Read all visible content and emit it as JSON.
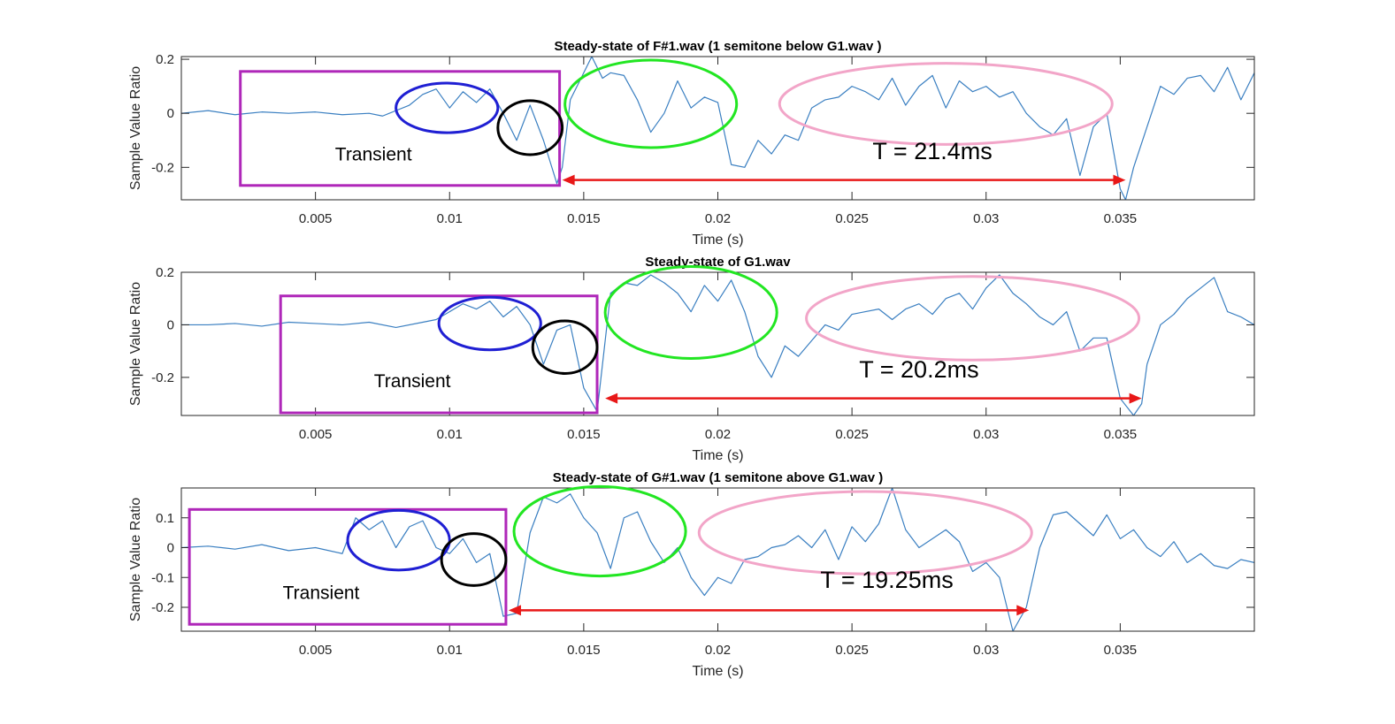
{
  "chart_data": [
    {
      "type": "line",
      "title": "Steady-state of F#1.wav (1 semitone below G1.wav )",
      "xlabel": "Time (s)",
      "ylabel": "Sample Value Ratio",
      "xlim": [
        0,
        0.04
      ],
      "ylim": [
        -0.32,
        0.21
      ],
      "xticks": [
        0.005,
        0.01,
        0.015,
        0.02,
        0.025,
        0.03,
        0.035
      ],
      "xtick_labels": [
        "0.005",
        "0.01",
        "0.015",
        "0.02",
        "0.025",
        "0.03",
        "0.035"
      ],
      "yticks": [
        0.2,
        0,
        -0.2
      ],
      "ytick_labels": [
        "0.2",
        "0",
        "-0.2"
      ],
      "grid": false,
      "line_color": "#3A7FC1",
      "series": [
        {
          "x": [
            0,
            0.001,
            0.002,
            0.003,
            0.004,
            0.005,
            0.006,
            0.007,
            0.0075,
            0.008,
            0.0085,
            0.009,
            0.0095,
            0.01,
            0.0105,
            0.011,
            0.0115,
            0.012,
            0.0125,
            0.013,
            0.0135,
            0.014,
            0.0142,
            0.0145,
            0.015,
            0.0153,
            0.0157,
            0.016,
            0.0165,
            0.017,
            0.0175,
            0.018,
            0.0185,
            0.019,
            0.0195,
            0.02,
            0.0205,
            0.021,
            0.0215,
            0.022,
            0.0225,
            0.023,
            0.0235,
            0.024,
            0.0245,
            0.025,
            0.0255,
            0.026,
            0.0265,
            0.027,
            0.0275,
            0.028,
            0.0285,
            0.029,
            0.0295,
            0.03,
            0.0305,
            0.031,
            0.0315,
            0.032,
            0.0325,
            0.033,
            0.0335,
            0.034,
            0.0345,
            0.035,
            0.0352,
            0.0355,
            0.036,
            0.0365,
            0.037,
            0.0375,
            0.038,
            0.0385,
            0.039,
            0.0395,
            0.04
          ],
          "y": [
            0,
            0.01,
            -0.005,
            0.005,
            0,
            0.005,
            -0.005,
            0,
            -0.01,
            0.01,
            0.03,
            0.07,
            0.09,
            0.02,
            0.08,
            0.04,
            0.09,
            0.0,
            -0.1,
            0.03,
            -0.1,
            -0.26,
            -0.2,
            0.05,
            0.15,
            0.21,
            0.13,
            0.15,
            0.14,
            0.05,
            -0.07,
            0.0,
            0.12,
            0.02,
            0.06,
            0.04,
            -0.19,
            -0.2,
            -0.1,
            -0.15,
            -0.08,
            -0.1,
            0.02,
            0.05,
            0.06,
            0.1,
            0.08,
            0.05,
            0.13,
            0.03,
            0.1,
            0.14,
            0.02,
            0.12,
            0.08,
            0.1,
            0.06,
            0.08,
            0.0,
            -0.05,
            -0.08,
            -0.02,
            -0.23,
            -0.05,
            0.0,
            -0.28,
            -0.32,
            -0.2,
            -0.05,
            0.1,
            0.07,
            0.13,
            0.14,
            0.08,
            0.17,
            0.05,
            0.15
          ]
        }
      ],
      "annotations": {
        "transient_label": "Transient",
        "period_label": "T = 21.4ms",
        "transient_box": {
          "x0": 0.0022,
          "x1": 0.0141,
          "y0": -0.267,
          "y1": 0.155
        },
        "blue_ellipse": {
          "cx": 0.0099,
          "cy": 0.02,
          "rx": 0.0019,
          "ry": 0.0917
        },
        "black_ellipse": {
          "cx": 0.013,
          "cy": -0.053,
          "rx": 0.0012,
          "ry": 0.1
        },
        "green_ellipse": {
          "cx": 0.0175,
          "cy": 0.035,
          "rx": 0.0032,
          "ry": 0.162
        },
        "pink_ellipse": {
          "cx": 0.0285,
          "cy": 0.035,
          "rx": 0.0062,
          "ry": 0.15
        },
        "arrow": {
          "x0": 0.0142,
          "x1": 0.0352,
          "y": -0.247
        },
        "period_label_pos": {
          "x": 0.028,
          "y": -0.17
        }
      }
    },
    {
      "type": "line",
      "title": "Steady-state of G1.wav",
      "xlabel": "Time (s)",
      "ylabel": "Sample Value Ratio",
      "xlim": [
        0,
        0.04
      ],
      "ylim": [
        -0.345,
        0.2
      ],
      "xticks": [
        0.005,
        0.01,
        0.015,
        0.02,
        0.025,
        0.03,
        0.035
      ],
      "xtick_labels": [
        "0.005",
        "0.01",
        "0.015",
        "0.02",
        "0.025",
        "0.03",
        "0.035"
      ],
      "yticks": [
        0.2,
        0,
        -0.2
      ],
      "ytick_labels": [
        "0.2",
        "0",
        "-0.2"
      ],
      "grid": false,
      "line_color": "#3A7FC1",
      "series": [
        {
          "x": [
            0,
            0.001,
            0.002,
            0.003,
            0.004,
            0.005,
            0.006,
            0.007,
            0.008,
            0.009,
            0.0095,
            0.01,
            0.0105,
            0.011,
            0.0115,
            0.012,
            0.0125,
            0.013,
            0.0135,
            0.014,
            0.0145,
            0.015,
            0.0155,
            0.016,
            0.0165,
            0.017,
            0.0175,
            0.018,
            0.0185,
            0.019,
            0.0195,
            0.02,
            0.0205,
            0.021,
            0.0215,
            0.022,
            0.0225,
            0.023,
            0.0235,
            0.024,
            0.0245,
            0.025,
            0.0255,
            0.026,
            0.0265,
            0.027,
            0.0275,
            0.028,
            0.0285,
            0.029,
            0.0295,
            0.03,
            0.0305,
            0.031,
            0.0315,
            0.032,
            0.0325,
            0.033,
            0.0335,
            0.034,
            0.0345,
            0.035,
            0.0355,
            0.0358,
            0.036,
            0.0365,
            0.037,
            0.0375,
            0.038,
            0.0385,
            0.039,
            0.0395,
            0.04
          ],
          "y": [
            0,
            0,
            0.005,
            -0.005,
            0.01,
            0.005,
            0,
            0.01,
            -0.01,
            0.01,
            0.02,
            0.05,
            0.08,
            0.06,
            0.09,
            0.03,
            0.07,
            0.0,
            -0.15,
            -0.02,
            0.0,
            -0.24,
            -0.33,
            0.12,
            0.16,
            0.15,
            0.19,
            0.16,
            0.12,
            0.05,
            0.15,
            0.09,
            0.17,
            0.05,
            -0.12,
            -0.2,
            -0.08,
            -0.12,
            -0.06,
            0.0,
            -0.02,
            0.04,
            0.05,
            0.06,
            0.02,
            0.06,
            0.08,
            0.04,
            0.1,
            0.12,
            0.06,
            0.14,
            0.19,
            0.12,
            0.08,
            0.03,
            0.0,
            0.05,
            -0.1,
            -0.05,
            -0.05,
            -0.28,
            -0.345,
            -0.3,
            -0.15,
            0.0,
            0.04,
            0.1,
            0.14,
            0.18,
            0.05,
            0.03,
            0.0
          ]
        }
      ],
      "annotations": {
        "transient_label": "Transient",
        "period_label": "T = 20.2ms",
        "transient_box": {
          "x0": 0.0037,
          "x1": 0.0155,
          "y0": -0.335,
          "y1": 0.11
        },
        "blue_ellipse": {
          "cx": 0.0115,
          "cy": 0.005,
          "rx": 0.0019,
          "ry": 0.1
        },
        "black_ellipse": {
          "cx": 0.0143,
          "cy": -0.085,
          "rx": 0.0012,
          "ry": 0.1
        },
        "green_ellipse": {
          "cx": 0.019,
          "cy": 0.047,
          "rx": 0.0032,
          "ry": 0.175
        },
        "pink_ellipse": {
          "cx": 0.0295,
          "cy": 0.025,
          "rx": 0.0062,
          "ry": 0.159
        },
        "arrow": {
          "x0": 0.0158,
          "x1": 0.0358,
          "y": -0.28
        },
        "period_label_pos": {
          "x": 0.0275,
          "y": -0.2
        }
      }
    },
    {
      "type": "line",
      "title": "Steady-state of G#1.wav (1 semitone above G1.wav )",
      "xlabel": "Time (s)",
      "ylabel": "Sample Value Ratio",
      "xlim": [
        0,
        0.04
      ],
      "ylim": [
        -0.28,
        0.2
      ],
      "xticks": [
        0.005,
        0.01,
        0.015,
        0.02,
        0.025,
        0.03,
        0.035
      ],
      "xtick_labels": [
        "0.005",
        "0.01",
        "0.015",
        "0.02",
        "0.025",
        "0.03",
        "0.035"
      ],
      "yticks": [
        0.1,
        0,
        -0.1,
        -0.2
      ],
      "ytick_labels": [
        "0.1",
        "0",
        "-0.1",
        "-0.2"
      ],
      "grid": false,
      "line_color": "#3A7FC1",
      "series": [
        {
          "x": [
            0,
            0.001,
            0.002,
            0.003,
            0.004,
            0.005,
            0.006,
            0.0065,
            0.007,
            0.0075,
            0.008,
            0.0085,
            0.009,
            0.0095,
            0.01,
            0.0105,
            0.011,
            0.0115,
            0.012,
            0.0125,
            0.013,
            0.0135,
            0.014,
            0.0145,
            0.015,
            0.0155,
            0.016,
            0.0165,
            0.017,
            0.0175,
            0.018,
            0.0185,
            0.019,
            0.0195,
            0.02,
            0.0205,
            0.021,
            0.0215,
            0.022,
            0.0225,
            0.023,
            0.0235,
            0.024,
            0.0245,
            0.025,
            0.0255,
            0.026,
            0.0265,
            0.027,
            0.0275,
            0.028,
            0.0285,
            0.029,
            0.0295,
            0.03,
            0.0305,
            0.031,
            0.0315,
            0.032,
            0.0325,
            0.033,
            0.0335,
            0.034,
            0.0345,
            0.035,
            0.0355,
            0.036,
            0.0365,
            0.037,
            0.0375,
            0.038,
            0.0385,
            0.039,
            0.0395,
            0.04
          ],
          "y": [
            0,
            0.005,
            -0.005,
            0.01,
            -0.01,
            0.0,
            -0.02,
            0.1,
            0.06,
            0.09,
            0.0,
            0.07,
            0.09,
            0.0,
            -0.02,
            0.03,
            -0.05,
            -0.02,
            -0.23,
            -0.22,
            0.05,
            0.17,
            0.15,
            0.18,
            0.1,
            0.05,
            -0.07,
            0.1,
            0.12,
            0.02,
            -0.05,
            0.0,
            -0.1,
            -0.16,
            -0.1,
            -0.12,
            -0.04,
            -0.03,
            0.0,
            0.01,
            0.04,
            0.0,
            0.06,
            -0.04,
            0.07,
            0.02,
            0.08,
            0.2,
            0.06,
            0.0,
            0.03,
            0.06,
            0.02,
            -0.08,
            -0.05,
            -0.1,
            -0.28,
            -0.2,
            0.0,
            0.11,
            0.12,
            0.08,
            0.04,
            0.11,
            0.03,
            0.06,
            0.0,
            -0.03,
            0.02,
            -0.05,
            -0.02,
            -0.06,
            -0.07,
            -0.04,
            -0.05
          ]
        }
      ],
      "annotations": {
        "transient_label": "Transient",
        "period_label": "T = 19.25ms",
        "transient_box": {
          "x0": 0.0003,
          "x1": 0.0121,
          "y0": -0.257,
          "y1": 0.128
        },
        "blue_ellipse": {
          "cx": 0.0081,
          "cy": 0.025,
          "rx": 0.0019,
          "ry": 0.1
        },
        "black_ellipse": {
          "cx": 0.0109,
          "cy": -0.04,
          "rx": 0.0012,
          "ry": 0.087
        },
        "green_ellipse": {
          "cx": 0.0156,
          "cy": 0.055,
          "rx": 0.0032,
          "ry": 0.15
        },
        "pink_ellipse": {
          "cx": 0.0255,
          "cy": 0.05,
          "rx": 0.0062,
          "ry": 0.138
        },
        "arrow": {
          "x0": 0.0122,
          "x1": 0.0316,
          "y": -0.21
        },
        "period_label_pos": {
          "x": 0.0263,
          "y": -0.135
        }
      }
    }
  ],
  "colors": {
    "line": "#3A7FC1",
    "transient_box": "#AF27B9",
    "blue_ellipse": "#1F1FD3",
    "black_ellipse": "#000000",
    "green_ellipse": "#22E622",
    "pink_ellipse": "#F2A5C8",
    "arrow": "#E81818",
    "axis": "#262626"
  }
}
